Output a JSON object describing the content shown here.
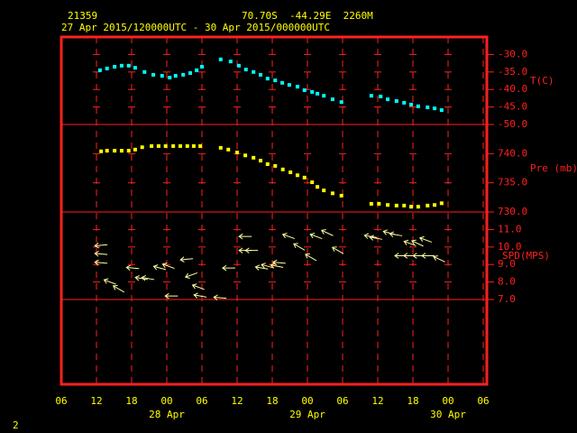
{
  "header": {
    "station": "21359",
    "location": "70.70S  -44.29E  2260M",
    "period": "27 Apr 2015/120000UTC - 30 Apr 2015/000000UTC",
    "footer": "2"
  },
  "chart_data": [
    {
      "type": "scatter",
      "label": "T(C)",
      "color": "#00ffff",
      "x": [
        6.6,
        7.8,
        9.1,
        10.3,
        11.5,
        12.6,
        14.2,
        15.7,
        17.2,
        18.5,
        19.5,
        20.8,
        22.0,
        23.1,
        24.0,
        27.2,
        28.9,
        30.3,
        31.5,
        32.8,
        34.0,
        35.2,
        36.5,
        37.7,
        38.9,
        40.3,
        41.5,
        42.8,
        43.7,
        44.8,
        46.3,
        47.8,
        52.9,
        54.5,
        55.7,
        57.2,
        58.5,
        59.7,
        60.9,
        62.5,
        63.7,
        64.9
      ],
      "values": [
        -34.5,
        -34.0,
        -33.5,
        -33.2,
        -33.2,
        -33.8,
        -35.0,
        -35.8,
        -36.1,
        -36.6,
        -36.1,
        -35.8,
        -35.3,
        -34.5,
        -33.5,
        -31.4,
        -32.0,
        -33.2,
        -34.3,
        -35.0,
        -35.8,
        -36.9,
        -37.4,
        -38.1,
        -38.7,
        -39.2,
        -40.2,
        -40.7,
        -41.2,
        -41.8,
        -42.8,
        -43.6,
        -41.8,
        -42.0,
        -42.8,
        -43.3,
        -43.8,
        -44.3,
        -44.8,
        -45.1,
        -45.4,
        -45.9
      ],
      "xlim": [
        0,
        72
      ],
      "xticks": [
        {
          "value": 0,
          "label": "06"
        },
        {
          "value": 6,
          "label": "12"
        },
        {
          "value": 12,
          "label": "18"
        },
        {
          "value": 18,
          "label": "00"
        },
        {
          "value": 24,
          "label": "06"
        },
        {
          "value": 30,
          "label": "12"
        },
        {
          "value": 36,
          "label": "18"
        },
        {
          "value": 42,
          "label": "00"
        },
        {
          "value": 48,
          "label": "06"
        },
        {
          "value": 54,
          "label": "12"
        },
        {
          "value": 60,
          "label": "18"
        },
        {
          "value": 66,
          "label": "00"
        },
        {
          "value": 72,
          "label": "06"
        }
      ],
      "date_labels": [
        {
          "value": 18,
          "label": "28 Apr"
        },
        {
          "value": 42,
          "label": "29 Apr"
        },
        {
          "value": 66,
          "label": "30 Apr"
        }
      ],
      "ylim": [
        -50,
        -25
      ],
      "yticks": [
        {
          "value": -30,
          "label": "-30.0"
        },
        {
          "value": -35,
          "label": "-35.0"
        },
        {
          "value": -40,
          "label": "-40.0"
        },
        {
          "value": -45,
          "label": "-45.0"
        },
        {
          "value": -50,
          "label": "-50.0"
        }
      ]
    },
    {
      "type": "scatter",
      "label": "Pre (mb)",
      "color": "#ffff00",
      "x": [
        6.8,
        7.8,
        9.1,
        10.3,
        11.5,
        12.6,
        13.8,
        15.4,
        16.6,
        17.8,
        19.1,
        20.3,
        21.5,
        22.6,
        23.7,
        27.2,
        28.5,
        30.0,
        31.4,
        32.8,
        34.0,
        35.2,
        36.5,
        37.8,
        39.1,
        40.3,
        41.5,
        42.8,
        43.7,
        44.8,
        46.3,
        47.8,
        52.9,
        54.2,
        55.7,
        57.2,
        58.5,
        59.7,
        60.9,
        62.5,
        63.7,
        64.9
      ],
      "values": [
        740.4,
        740.5,
        740.5,
        740.5,
        740.5,
        740.7,
        741.1,
        741.3,
        741.3,
        741.3,
        741.3,
        741.3,
        741.3,
        741.3,
        741.3,
        741.0,
        740.7,
        740.2,
        739.7,
        739.3,
        738.8,
        738.2,
        737.9,
        737.3,
        736.8,
        736.3,
        735.9,
        735.1,
        734.3,
        733.7,
        733.2,
        732.8,
        731.4,
        731.4,
        731.2,
        731.1,
        731.1,
        730.9,
        730.9,
        731.1,
        731.2,
        731.5
      ],
      "xlim": [
        0,
        72
      ],
      "ylim": [
        730,
        745
      ],
      "yticks": [
        {
          "value": 740,
          "label": "740.0"
        },
        {
          "value": 735,
          "label": "735.0"
        },
        {
          "value": 730,
          "label": "730.0"
        }
      ]
    },
    {
      "type": "arrows",
      "label": "SPD(MPS)",
      "color": "#ffffa0",
      "x": [
        6.8,
        6.8,
        6.8,
        8.3,
        9.8,
        12.2,
        13.7,
        14.8,
        16.8,
        18.3,
        18.8,
        21.4,
        22.2,
        23.4,
        23.7,
        27.1,
        28.6,
        31.4,
        31.4,
        32.5,
        34.2,
        35.2,
        36.8,
        37.2,
        38.8,
        40.6,
        42.6,
        43.5,
        45.4,
        47.2,
        52.8,
        53.7,
        56.0,
        57.1,
        59.5,
        60.8,
        62.2,
        58.0,
        59.5,
        61.1,
        62.6,
        64.5
      ],
      "values": [
        10.1,
        9.6,
        9.1,
        8.0,
        7.6,
        8.8,
        8.2,
        8.2,
        8.8,
        8.9,
        7.2,
        9.3,
        8.4,
        7.7,
        7.2,
        7.1,
        8.8,
        10.6,
        9.8,
        9.8,
        8.8,
        8.9,
        8.9,
        9.1,
        10.6,
        10.0,
        9.4,
        10.6,
        10.8,
        9.8,
        10.6,
        10.5,
        10.8,
        10.7,
        10.2,
        10.2,
        10.4,
        9.5,
        9.5,
        9.5,
        9.5,
        9.3
      ],
      "directions": [
        265,
        275,
        275,
        290,
        300,
        275,
        280,
        280,
        285,
        290,
        270,
        265,
        250,
        290,
        280,
        275,
        270,
        270,
        270,
        270,
        280,
        285,
        280,
        275,
        290,
        300,
        300,
        290,
        295,
        300,
        280,
        280,
        285,
        280,
        290,
        295,
        290,
        270,
        270,
        270,
        270,
        295
      ],
      "xlim": [
        0,
        72
      ],
      "ylim": [
        7,
        12
      ],
      "yticks": [
        {
          "value": 11,
          "label": "11.0"
        },
        {
          "value": 10,
          "label": "10.0"
        },
        {
          "value": 9,
          "label": "9.0"
        },
        {
          "value": 8,
          "label": "8.0"
        },
        {
          "value": 7,
          "label": "7.0"
        }
      ]
    }
  ]
}
